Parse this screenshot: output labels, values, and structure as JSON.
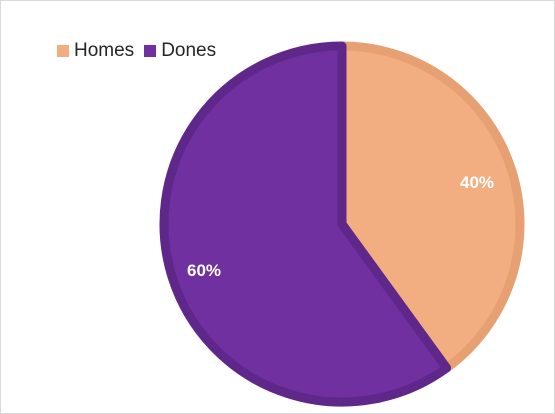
{
  "chart_data": {
    "type": "pie",
    "title": "",
    "legend_position": "top-left",
    "slices": [
      {
        "label": "Homes",
        "value": 40,
        "display": "40%",
        "color": "#f2ae80",
        "border": "#e6a071"
      },
      {
        "label": "Dones",
        "value": 60,
        "display": "60%",
        "color": "#7030a0",
        "border": "#5f278a"
      }
    ]
  }
}
